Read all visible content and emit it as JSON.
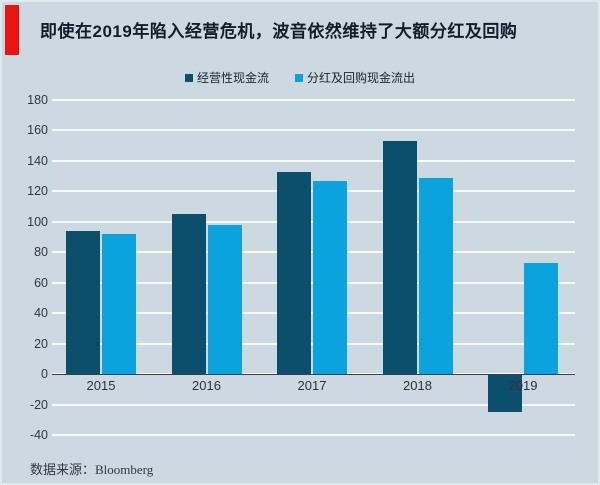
{
  "title": "即使在2019年陷入经营危机，波音依然维持了大额分红及回购",
  "source": "数据来源：Bloomberg",
  "colors": {
    "background": "#cdd9e0",
    "accent_red": "#ec1410",
    "operating_cashflow_bar": "#0b4f6c",
    "payout_bar": "#0aa3de",
    "gridline": "#f4f9fb",
    "zero_axis_line": "#3c3f42",
    "title_text": "#111e2a"
  },
  "chart_data": {
    "type": "bar",
    "title": "即使在2019年陷入经营危机，波音依然维持了大额分红及回购",
    "categories": [
      "2015",
      "2016",
      "2017",
      "2018",
      "2019"
    ],
    "series": [
      {
        "name": "经营性现金流",
        "color": "#0b4f6c",
        "values": [
          94,
          105,
          133,
          153,
          -24
        ]
      },
      {
        "name": "分红及回购现金流出",
        "color": "#0aa3de",
        "values": [
          92,
          98,
          127,
          129,
          73
        ]
      }
    ],
    "xlabel": "",
    "ylabel": "",
    "ylim": [
      -40,
      180
    ],
    "ytick_step": 20,
    "yticks": [
      180,
      160,
      140,
      120,
      100,
      80,
      60,
      40,
      20,
      0,
      -20,
      -40
    ],
    "grid": true,
    "legend_position": "top",
    "source_note": "数据来源：Bloomberg"
  }
}
